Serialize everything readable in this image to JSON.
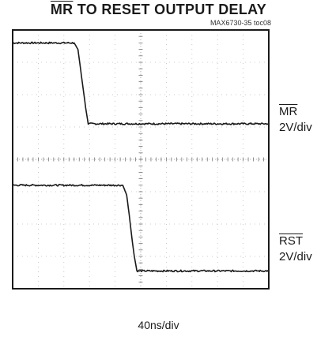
{
  "title": {
    "overlined": "MR",
    "rest": " TO RESET OUTPUT DELAY"
  },
  "figure_tag": "MAX6730-35 toc08",
  "channels": [
    {
      "name": "MR",
      "scale": "2V/div"
    },
    {
      "name": "RST",
      "scale": "2V/div"
    }
  ],
  "timebase": "40ns/div",
  "colors": {
    "trace": "#1a1a1a",
    "grid": "#bdbdbd",
    "border": "#1a1a1a"
  },
  "chart_data": {
    "type": "line",
    "title": "MR TO RESET OUTPUT DELAY",
    "xlabel": "40ns/div",
    "ylabel": "",
    "grid": true,
    "divisions": {
      "x": 10,
      "y": 8
    },
    "xlim": [
      0,
      10
    ],
    "ylim": [
      0,
      8
    ],
    "series": [
      {
        "name": "MR",
        "x": [
          0,
          2.4,
          2.55,
          2.65,
          2.75,
          2.85,
          2.95,
          3.15,
          10
        ],
        "y": [
          7.6,
          7.6,
          7.4,
          6.8,
          6.2,
          5.6,
          5.1,
          5.1,
          5.1
        ]
      },
      {
        "name": "RST",
        "x": [
          0,
          4.3,
          4.45,
          4.55,
          4.65,
          4.75,
          4.85,
          5.0,
          10
        ],
        "y": [
          3.2,
          3.2,
          2.9,
          2.3,
          1.6,
          1.0,
          0.55,
          0.55,
          0.55
        ]
      }
    ]
  }
}
